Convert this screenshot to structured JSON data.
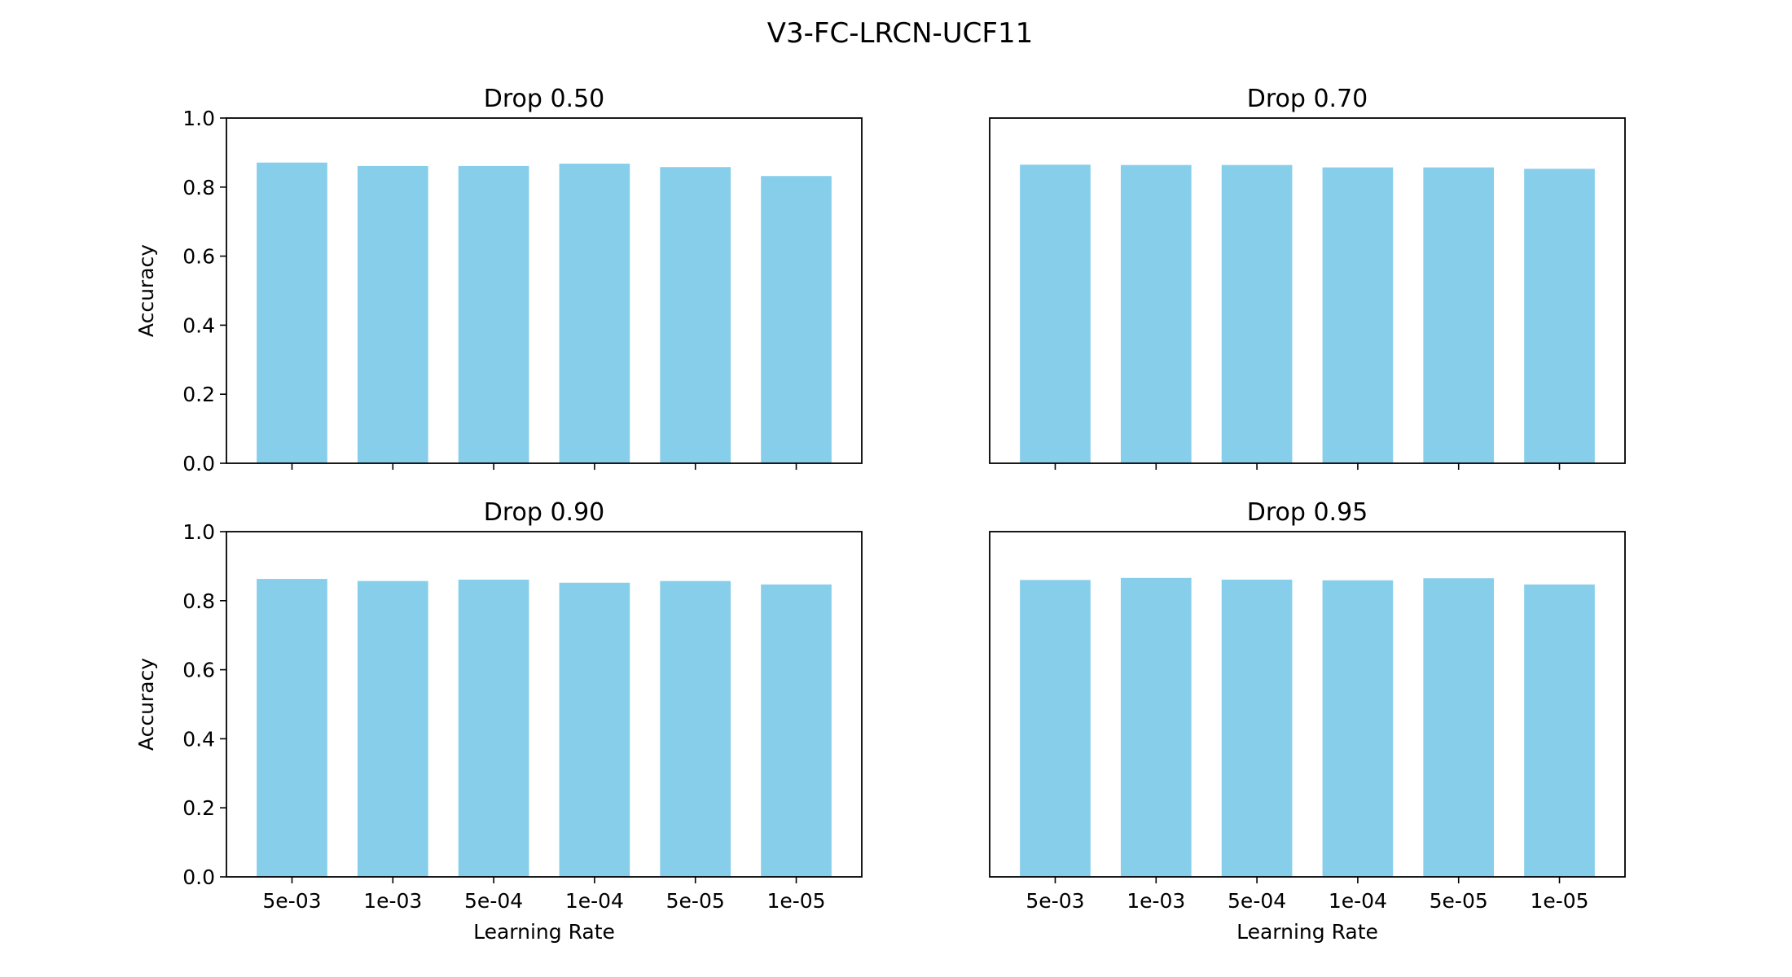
{
  "figure": {
    "title": "V3-FC-LRCN-UCF11",
    "bar_color": "#87CEEB"
  },
  "chart_data": [
    {
      "type": "bar",
      "title": "Drop 0.50",
      "categories": [
        "5e-03",
        "1e-03",
        "5e-04",
        "1e-04",
        "5e-05",
        "1e-05"
      ],
      "values": [
        0.871,
        0.861,
        0.861,
        0.868,
        0.858,
        0.832
      ],
      "xlabel": "",
      "ylabel": "Accuracy",
      "ylim": [
        0,
        1
      ],
      "yticks": [
        "0.0",
        "0.2",
        "0.4",
        "0.6",
        "0.8",
        "1.0"
      ],
      "grid": false
    },
    {
      "type": "bar",
      "title": "Drop 0.70",
      "categories": [
        "5e-03",
        "1e-03",
        "5e-04",
        "1e-04",
        "5e-05",
        "1e-05"
      ],
      "values": [
        0.865,
        0.864,
        0.864,
        0.857,
        0.857,
        0.853
      ],
      "xlabel": "",
      "ylabel": "",
      "ylim": [
        0,
        1
      ],
      "yticks": [],
      "grid": false
    },
    {
      "type": "bar",
      "title": "Drop 0.90",
      "categories": [
        "5e-03",
        "1e-03",
        "5e-04",
        "1e-04",
        "5e-05",
        "1e-05"
      ],
      "values": [
        0.863,
        0.857,
        0.861,
        0.852,
        0.857,
        0.847
      ],
      "xlabel": "Learning Rate",
      "ylabel": "Accuracy",
      "ylim": [
        0,
        1
      ],
      "yticks": [
        "0.0",
        "0.2",
        "0.4",
        "0.6",
        "0.8",
        "1.0"
      ],
      "grid": false
    },
    {
      "type": "bar",
      "title": "Drop 0.95",
      "categories": [
        "5e-03",
        "1e-03",
        "5e-04",
        "1e-04",
        "5e-05",
        "1e-05"
      ],
      "values": [
        0.86,
        0.866,
        0.861,
        0.859,
        0.865,
        0.847
      ],
      "xlabel": "Learning Rate",
      "ylabel": "",
      "ylim": [
        0,
        1
      ],
      "yticks": [],
      "grid": false
    }
  ]
}
